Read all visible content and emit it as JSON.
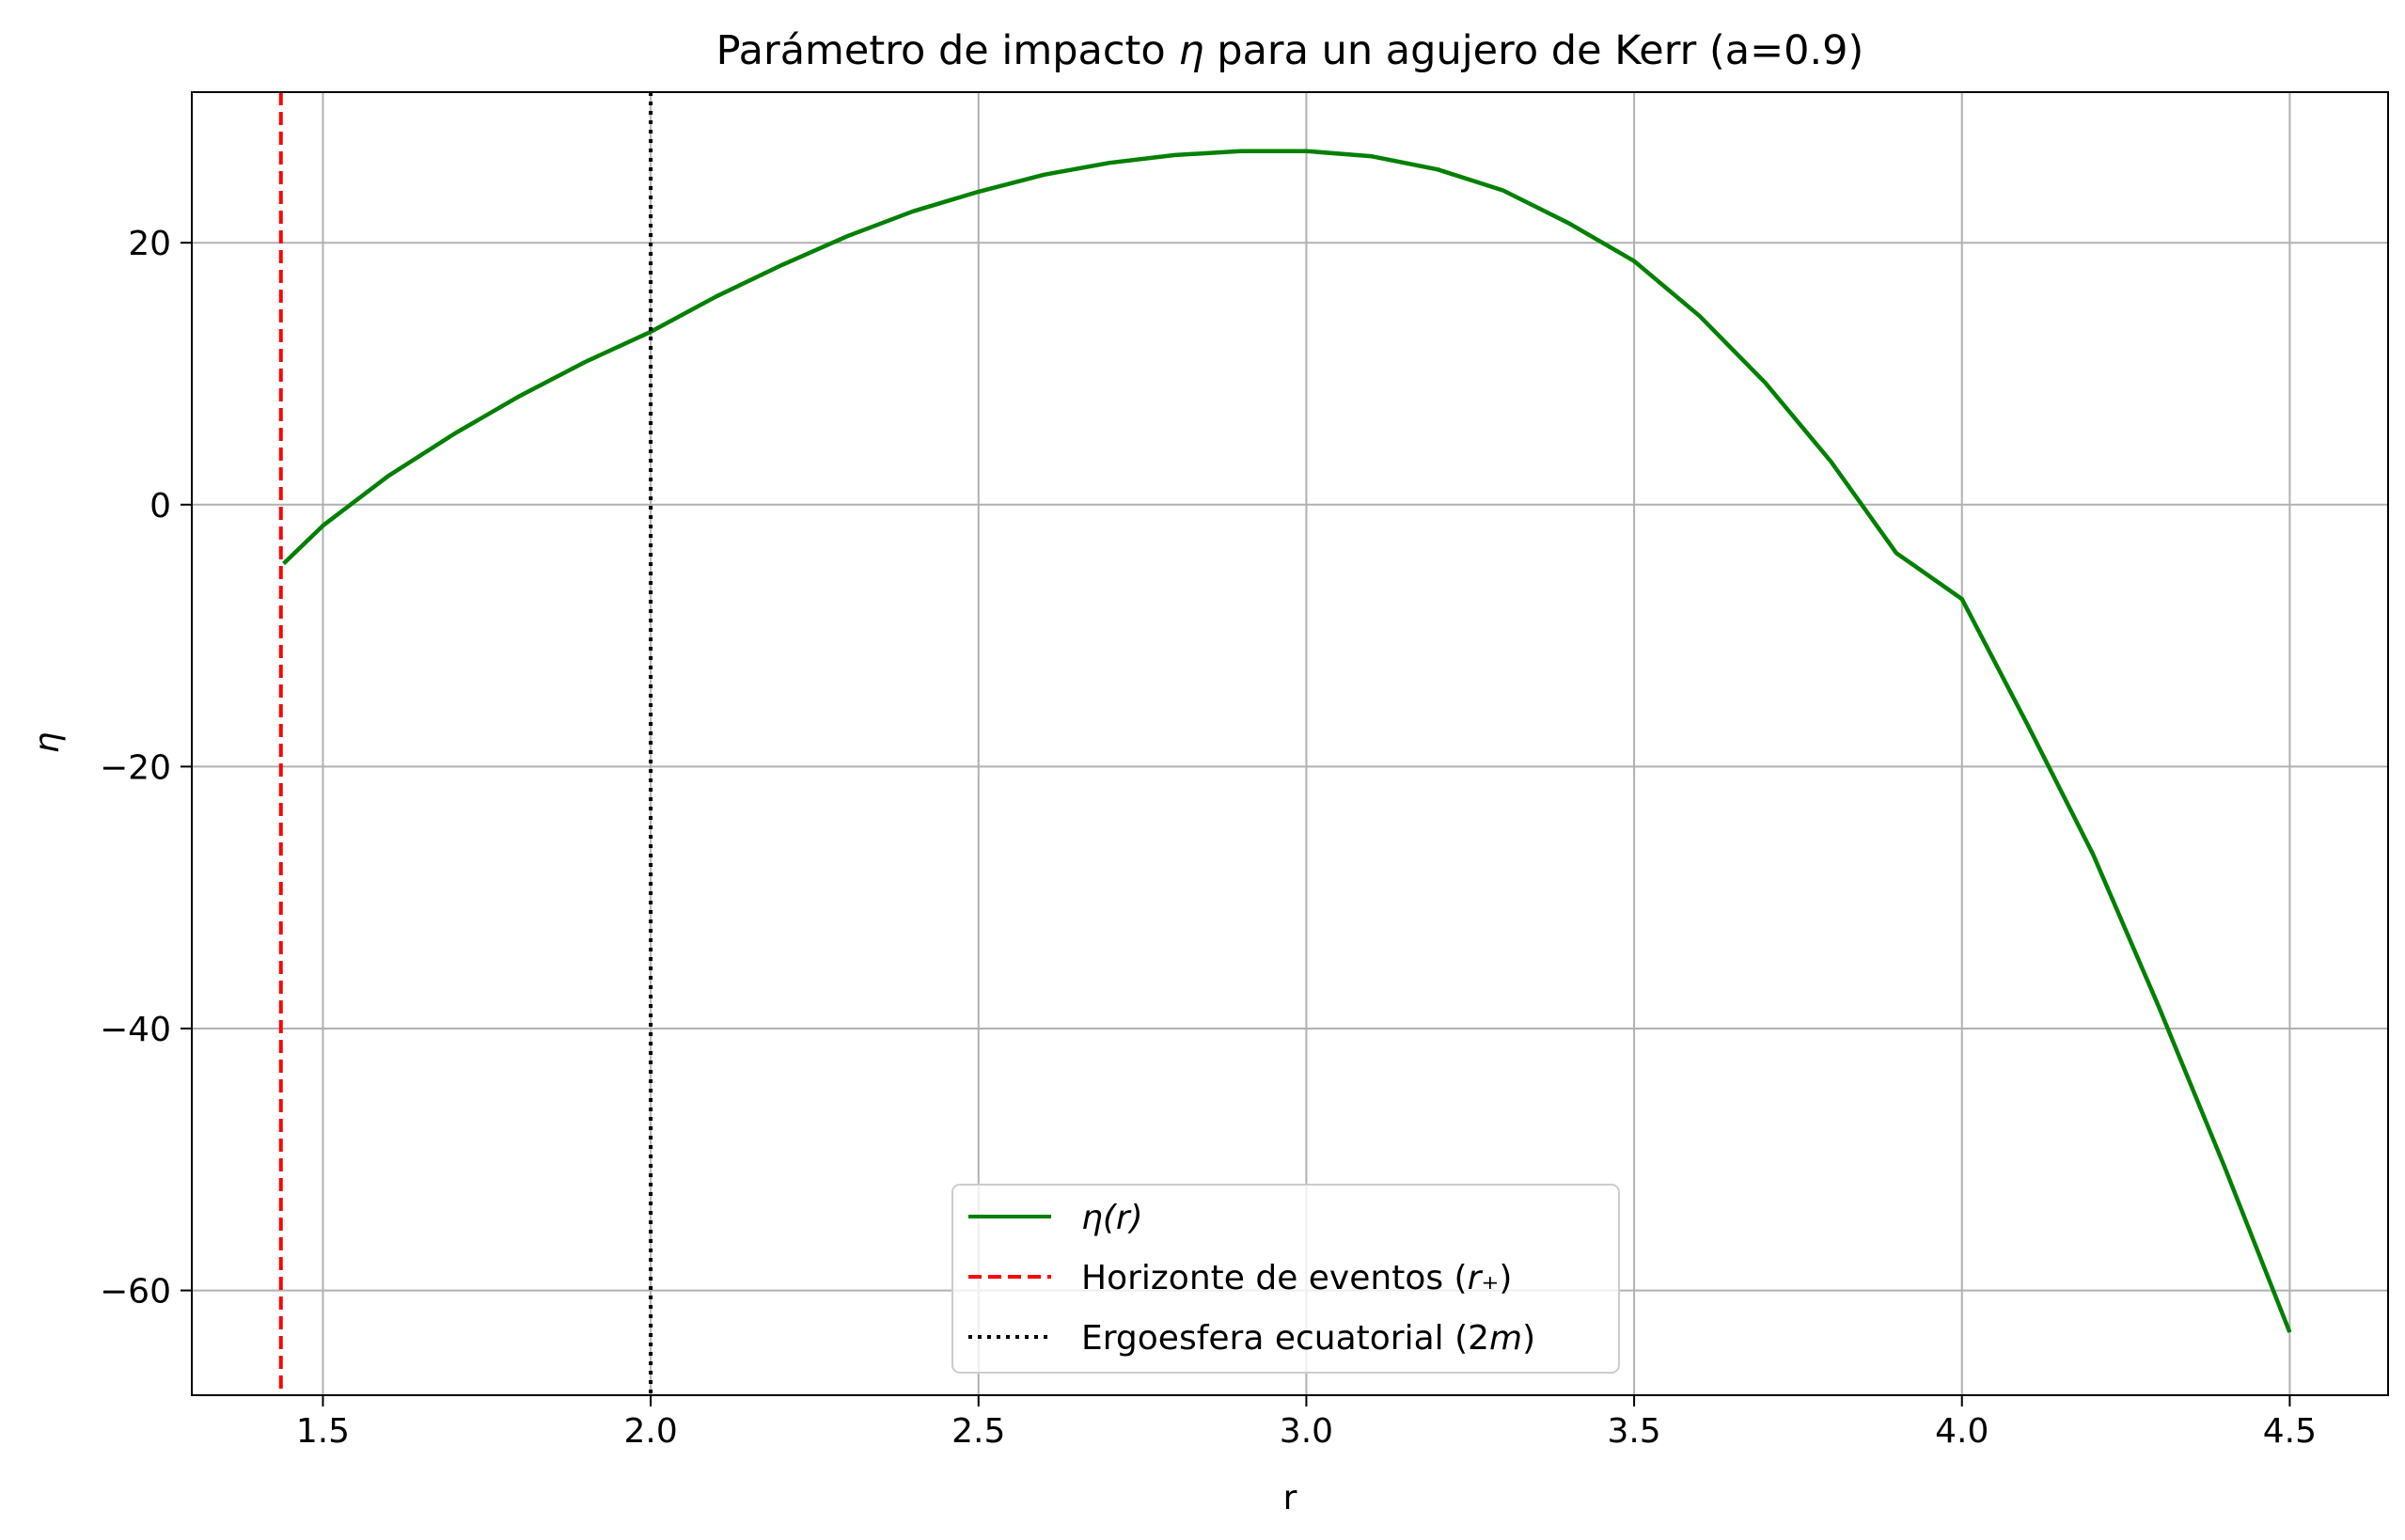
{
  "chart_data": {
    "type": "line",
    "title": {
      "prefix": "Parámetro de impacto ",
      "symbol": "η",
      "suffix": " para un agujero de Kerr (a=0.9)"
    },
    "xlabel": "r",
    "ylabel": "η",
    "xlim": [
      1.3,
      4.65
    ],
    "ylim": [
      -68,
      31.5
    ],
    "xticks": [
      1.5,
      2.0,
      2.5,
      3.0,
      3.5,
      4.0,
      4.5
    ],
    "xtick_labels": [
      "1.5",
      "2.0",
      "2.5",
      "3.0",
      "3.5",
      "4.0",
      "4.5"
    ],
    "yticks": [
      20,
      0,
      -20,
      -40,
      -60
    ],
    "ytick_labels": [
      "20",
      "0",
      "−20",
      "−40",
      "−60"
    ],
    "grid": true,
    "legend_position": "lower center",
    "series": [
      {
        "name": "η(r)",
        "kind": "curve",
        "color": "#008000",
        "style": "solid",
        "x": [
          1.44,
          1.5,
          1.6,
          1.7,
          1.8,
          1.9,
          2.0,
          2.1,
          2.2,
          2.3,
          2.4,
          2.5,
          2.6,
          2.7,
          2.8,
          2.9,
          3.0,
          3.1,
          3.2,
          3.3,
          3.4,
          3.5,
          3.6,
          3.7,
          3.8,
          3.9,
          4.0,
          4.1,
          4.2,
          4.3,
          4.4,
          4.5
        ],
        "y": [
          -4.5,
          -1.6,
          2.2,
          5.4,
          8.3,
          10.9,
          13.2,
          15.9,
          18.3,
          20.5,
          22.4,
          23.9,
          25.2,
          26.1,
          26.7,
          27.0,
          27.0,
          26.6,
          25.6,
          24.0,
          21.5,
          18.6,
          14.4,
          9.3,
          3.3,
          -3.7,
          -7.2,
          -16.8,
          -26.7,
          -38.3,
          -50.5,
          -63.2
        ]
      },
      {
        "name": "Horizonte de eventos (r₊)",
        "label_parts": [
          "Horizonte de eventos (",
          "r",
          "₊",
          ")"
        ],
        "kind": "vline",
        "x": 1.4359,
        "color": "#ff0000",
        "style": "dashed"
      },
      {
        "name": "Ergoesfera ecuatorial (2m)",
        "label_parts": [
          "Ergoesfera ecuatorial (2",
          "m",
          ")"
        ],
        "kind": "vline",
        "x": 2.0,
        "color": "#000000",
        "style": "dotted"
      }
    ]
  }
}
